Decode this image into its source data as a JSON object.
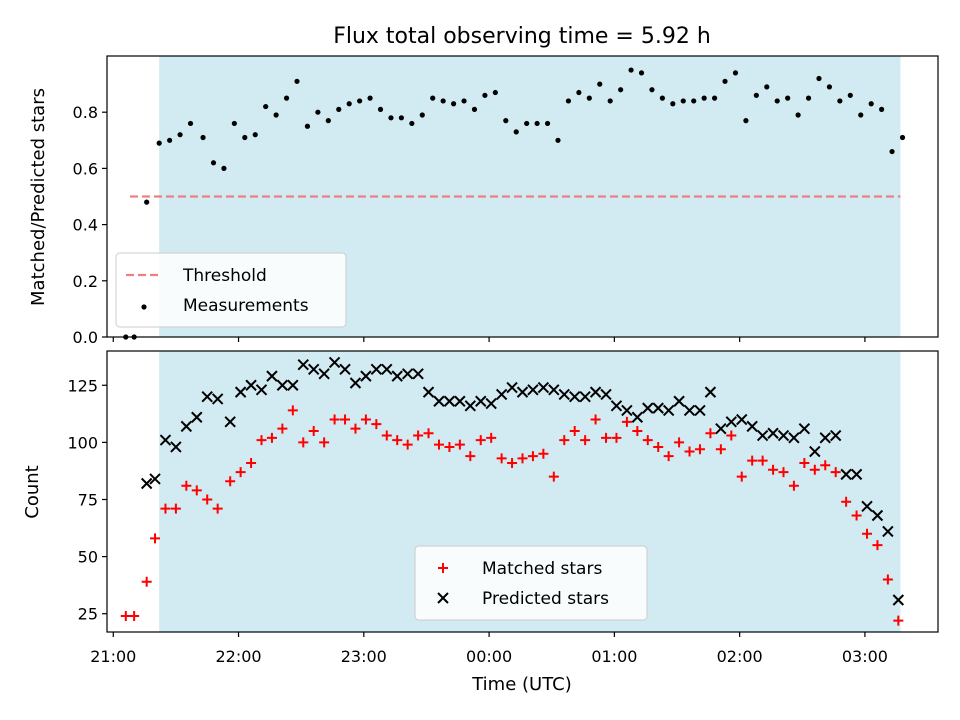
{
  "chart_data": [
    {
      "type": "scatter",
      "title": "Flux total observing time = 5.92 h",
      "xlabel": "",
      "ylabel": "Matched/Predicted stars",
      "xlim": [
        "20:57",
        "03:35"
      ],
      "ylim": [
        0,
        1.0
      ],
      "yticks": [
        "0.0",
        "0.2",
        "0.4",
        "0.6",
        "0.8"
      ],
      "ytick_values": [
        0,
        0.2,
        0.4,
        0.6,
        0.8
      ],
      "grid": false,
      "legend": "lower-left",
      "observing_window": [
        "21:22",
        "03:17"
      ],
      "threshold": {
        "name": "Threshold",
        "value": 0.5,
        "x_range": [
          "21:08",
          "03:17"
        ],
        "style": "dashed",
        "color": "#f08080"
      },
      "series": [
        {
          "name": "Measurements",
          "marker": "dot",
          "color": "#000000",
          "points": [
            [
              "21:06",
              0.0
            ],
            [
              "21:10",
              0.0
            ],
            [
              "21:16",
              0.48
            ],
            [
              "21:22",
              0.69
            ],
            [
              "21:27",
              0.7
            ],
            [
              "21:32",
              0.72
            ],
            [
              "21:37",
              0.76
            ],
            [
              "21:43",
              0.71
            ],
            [
              "21:48",
              0.62
            ],
            [
              "21:53",
              0.6
            ],
            [
              "21:58",
              0.76
            ],
            [
              "22:03",
              0.71
            ],
            [
              "22:08",
              0.72
            ],
            [
              "22:13",
              0.82
            ],
            [
              "22:18",
              0.79
            ],
            [
              "22:23",
              0.85
            ],
            [
              "22:28",
              0.91
            ],
            [
              "22:33",
              0.75
            ],
            [
              "22:38",
              0.8
            ],
            [
              "22:43",
              0.77
            ],
            [
              "22:48",
              0.81
            ],
            [
              "22:53",
              0.83
            ],
            [
              "22:58",
              0.84
            ],
            [
              "23:03",
              0.85
            ],
            [
              "23:08",
              0.81
            ],
            [
              "23:13",
              0.78
            ],
            [
              "23:18",
              0.78
            ],
            [
              "23:23",
              0.76
            ],
            [
              "23:28",
              0.79
            ],
            [
              "23:33",
              0.85
            ],
            [
              "23:38",
              0.84
            ],
            [
              "23:43",
              0.83
            ],
            [
              "23:48",
              0.84
            ],
            [
              "23:53",
              0.81
            ],
            [
              "23:58",
              0.86
            ],
            [
              "00:03",
              0.87
            ],
            [
              "00:08",
              0.77
            ],
            [
              "00:13",
              0.73
            ],
            [
              "00:18",
              0.76
            ],
            [
              "00:23",
              0.76
            ],
            [
              "00:28",
              0.76
            ],
            [
              "00:33",
              0.7
            ],
            [
              "00:38",
              0.84
            ],
            [
              "00:43",
              0.87
            ],
            [
              "00:48",
              0.85
            ],
            [
              "00:53",
              0.9
            ],
            [
              "00:58",
              0.84
            ],
            [
              "01:03",
              0.88
            ],
            [
              "01:08",
              0.95
            ],
            [
              "01:13",
              0.94
            ],
            [
              "01:18",
              0.88
            ],
            [
              "01:23",
              0.85
            ],
            [
              "01:28",
              0.83
            ],
            [
              "01:33",
              0.84
            ],
            [
              "01:38",
              0.84
            ],
            [
              "01:43",
              0.85
            ],
            [
              "01:48",
              0.85
            ],
            [
              "01:53",
              0.91
            ],
            [
              "01:58",
              0.94
            ],
            [
              "02:03",
              0.77
            ],
            [
              "02:08",
              0.86
            ],
            [
              "02:13",
              0.89
            ],
            [
              "02:18",
              0.84
            ],
            [
              "02:23",
              0.85
            ],
            [
              "02:28",
              0.79
            ],
            [
              "02:33",
              0.85
            ],
            [
              "02:38",
              0.92
            ],
            [
              "02:43",
              0.89
            ],
            [
              "02:48",
              0.84
            ],
            [
              "02:53",
              0.86
            ],
            [
              "02:58",
              0.79
            ],
            [
              "03:03",
              0.83
            ],
            [
              "03:08",
              0.81
            ],
            [
              "03:13",
              0.66
            ],
            [
              "03:18",
              0.71
            ]
          ]
        }
      ]
    },
    {
      "type": "scatter",
      "title": "",
      "xlabel": "Time (UTC)",
      "ylabel": "Count",
      "xlim": [
        "20:57",
        "03:35"
      ],
      "ylim": [
        17,
        140
      ],
      "xticks": [
        "21:00",
        "22:00",
        "23:00",
        "00:00",
        "01:00",
        "02:00",
        "03:00"
      ],
      "yticks": [
        "25",
        "50",
        "75",
        "100",
        "125"
      ],
      "ytick_values": [
        25,
        50,
        75,
        100,
        125
      ],
      "grid": false,
      "legend": "lower-center",
      "observing_window": [
        "21:22",
        "03:17"
      ],
      "series": [
        {
          "name": "Matched stars",
          "marker": "plus",
          "color": "#ff0000",
          "points": [
            [
              "21:06",
              24
            ],
            [
              "21:10",
              24
            ],
            [
              "21:16",
              39
            ],
            [
              "21:20",
              58
            ],
            [
              "21:25",
              71
            ],
            [
              "21:30",
              71
            ],
            [
              "21:35",
              81
            ],
            [
              "21:40",
              79
            ],
            [
              "21:45",
              75
            ],
            [
              "21:50",
              71
            ],
            [
              "21:56",
              83
            ],
            [
              "22:01",
              87
            ],
            [
              "22:06",
              91
            ],
            [
              "22:11",
              101
            ],
            [
              "22:16",
              102
            ],
            [
              "22:21",
              106
            ],
            [
              "22:26",
              114
            ],
            [
              "22:31",
              100
            ],
            [
              "22:36",
              105
            ],
            [
              "22:41",
              100
            ],
            [
              "22:46",
              110
            ],
            [
              "22:51",
              110
            ],
            [
              "22:56",
              106
            ],
            [
              "23:01",
              110
            ],
            [
              "23:06",
              108
            ],
            [
              "23:11",
              103
            ],
            [
              "23:16",
              101
            ],
            [
              "23:21",
              99
            ],
            [
              "23:26",
              103
            ],
            [
              "23:31",
              104
            ],
            [
              "23:36",
              99
            ],
            [
              "23:41",
              98
            ],
            [
              "23:46",
              99
            ],
            [
              "23:51",
              94
            ],
            [
              "23:56",
              101
            ],
            [
              "00:01",
              102
            ],
            [
              "00:06",
              93
            ],
            [
              "00:11",
              91
            ],
            [
              "00:16",
              93
            ],
            [
              "00:21",
              94
            ],
            [
              "00:26",
              95
            ],
            [
              "00:31",
              85
            ],
            [
              "00:36",
              101
            ],
            [
              "00:41",
              105
            ],
            [
              "00:46",
              101
            ],
            [
              "00:51",
              110
            ],
            [
              "00:56",
              102
            ],
            [
              "01:01",
              102
            ],
            [
              "01:06",
              109
            ],
            [
              "01:11",
              105
            ],
            [
              "01:16",
              101
            ],
            [
              "01:21",
              98
            ],
            [
              "01:26",
              94
            ],
            [
              "01:31",
              100
            ],
            [
              "01:36",
              96
            ],
            [
              "01:41",
              97
            ],
            [
              "01:46",
              104
            ],
            [
              "01:51",
              97
            ],
            [
              "01:56",
              103
            ],
            [
              "02:01",
              85
            ],
            [
              "02:06",
              92
            ],
            [
              "02:11",
              92
            ],
            [
              "02:16",
              88
            ],
            [
              "02:21",
              87
            ],
            [
              "02:26",
              81
            ],
            [
              "02:31",
              91
            ],
            [
              "02:36",
              88
            ],
            [
              "02:41",
              90
            ],
            [
              "02:46",
              87
            ],
            [
              "02:51",
              74
            ],
            [
              "02:56",
              68
            ],
            [
              "03:01",
              60
            ],
            [
              "03:06",
              55
            ],
            [
              "03:11",
              40
            ],
            [
              "03:16",
              22
            ]
          ]
        },
        {
          "name": "Predicted stars",
          "marker": "x",
          "color": "#000000",
          "points": [
            [
              "21:16",
              82
            ],
            [
              "21:20",
              84
            ],
            [
              "21:25",
              101
            ],
            [
              "21:30",
              98
            ],
            [
              "21:35",
              107
            ],
            [
              "21:40",
              111
            ],
            [
              "21:45",
              120
            ],
            [
              "21:50",
              119
            ],
            [
              "21:56",
              109
            ],
            [
              "22:01",
              122
            ],
            [
              "22:06",
              125
            ],
            [
              "22:11",
              123
            ],
            [
              "22:16",
              129
            ],
            [
              "22:21",
              125
            ],
            [
              "22:26",
              125
            ],
            [
              "22:31",
              134
            ],
            [
              "22:36",
              132
            ],
            [
              "22:41",
              130
            ],
            [
              "22:46",
              135
            ],
            [
              "22:51",
              132
            ],
            [
              "22:56",
              126
            ],
            [
              "23:01",
              129
            ],
            [
              "23:06",
              132
            ],
            [
              "23:11",
              132
            ],
            [
              "23:16",
              129
            ],
            [
              "23:21",
              130
            ],
            [
              "23:26",
              130
            ],
            [
              "23:31",
              122
            ],
            [
              "23:36",
              118
            ],
            [
              "23:41",
              118
            ],
            [
              "23:46",
              118
            ],
            [
              "23:51",
              116
            ],
            [
              "23:56",
              118
            ],
            [
              "00:01",
              117
            ],
            [
              "00:06",
              121
            ],
            [
              "00:11",
              124
            ],
            [
              "00:16",
              122
            ],
            [
              "00:21",
              123
            ],
            [
              "00:26",
              124
            ],
            [
              "00:31",
              123
            ],
            [
              "00:36",
              121
            ],
            [
              "00:41",
              120
            ],
            [
              "00:46",
              120
            ],
            [
              "00:51",
              122
            ],
            [
              "00:56",
              121
            ],
            [
              "01:01",
              116
            ],
            [
              "01:06",
              114
            ],
            [
              "01:11",
              111
            ],
            [
              "01:16",
              115
            ],
            [
              "01:21",
              115
            ],
            [
              "01:26",
              114
            ],
            [
              "01:31",
              118
            ],
            [
              "01:36",
              114
            ],
            [
              "01:41",
              114
            ],
            [
              "01:46",
              122
            ],
            [
              "01:51",
              106
            ],
            [
              "01:56",
              109
            ],
            [
              "02:01",
              110
            ],
            [
              "02:06",
              107
            ],
            [
              "02:11",
              103
            ],
            [
              "02:16",
              104
            ],
            [
              "02:21",
              103
            ],
            [
              "02:26",
              102
            ],
            [
              "02:31",
              106
            ],
            [
              "02:36",
              96
            ],
            [
              "02:41",
              102
            ],
            [
              "02:46",
              103
            ],
            [
              "02:51",
              86
            ],
            [
              "02:56",
              86
            ],
            [
              "03:01",
              72
            ],
            [
              "03:06",
              68
            ],
            [
              "03:11",
              61
            ],
            [
              "03:16",
              31
            ]
          ]
        }
      ]
    }
  ]
}
